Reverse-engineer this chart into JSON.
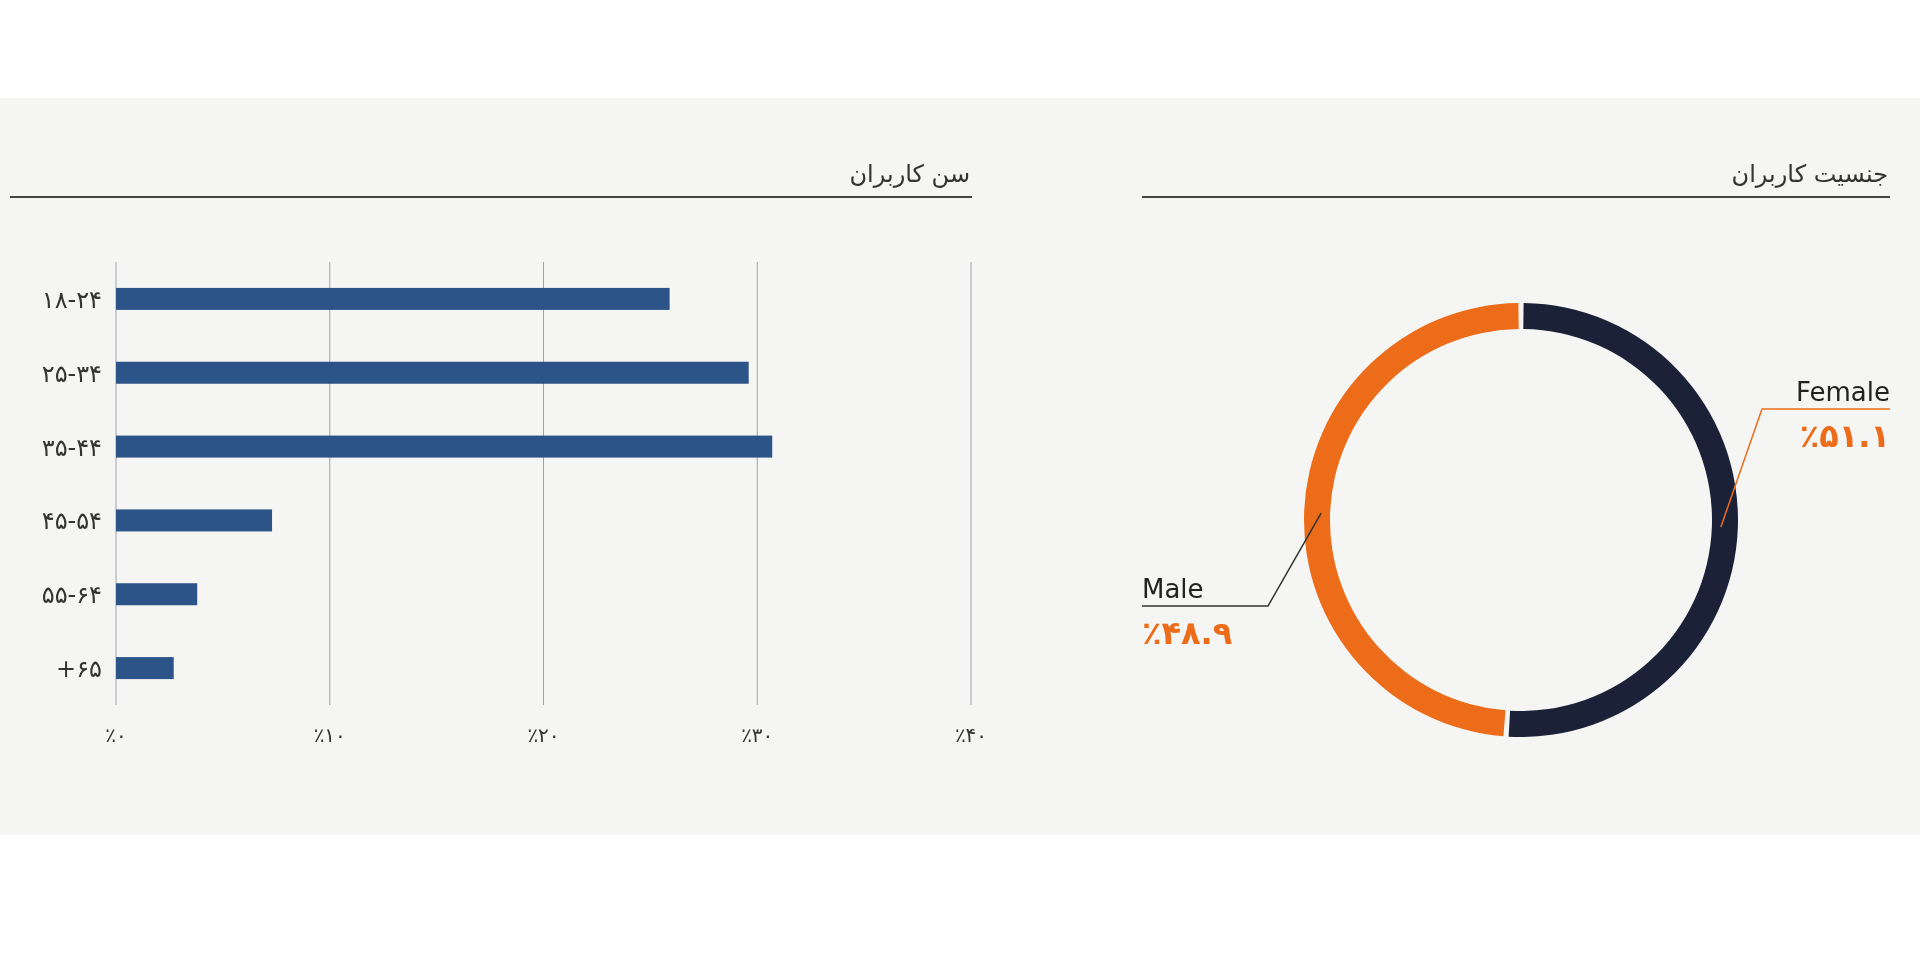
{
  "chart_data": [
    {
      "type": "bar",
      "orientation": "horizontal",
      "title": "سن کاربران",
      "categories": [
        "۱۸-۲۴",
        "۲۵-۳۴",
        "۳۵-۴۴",
        "۴۵-۵۴",
        "۵۵-۶۴",
        "+۶۵"
      ],
      "values": [
        25.9,
        29.6,
        30.7,
        7.3,
        3.8,
        2.7
      ],
      "color": "#2c5489",
      "xlim": [
        0,
        40
      ],
      "xticks": [
        {
          "value": 0,
          "label": "٪۰"
        },
        {
          "value": 10,
          "label": "٪۱۰"
        },
        {
          "value": 20,
          "label": "٪۲۰"
        },
        {
          "value": 30,
          "label": "٪۳۰"
        },
        {
          "value": 40,
          "label": "٪۴۰"
        }
      ],
      "grid": "x"
    },
    {
      "type": "donut",
      "title": "جنسیت کاربران",
      "categories": [
        "Female",
        "Male"
      ],
      "values": [
        51.1,
        48.9
      ],
      "colors": [
        "#1b2238",
        "#ec6c1a"
      ],
      "value_labels": [
        "٪۵۱.۱",
        "٪۴۸.۹"
      ]
    }
  ]
}
